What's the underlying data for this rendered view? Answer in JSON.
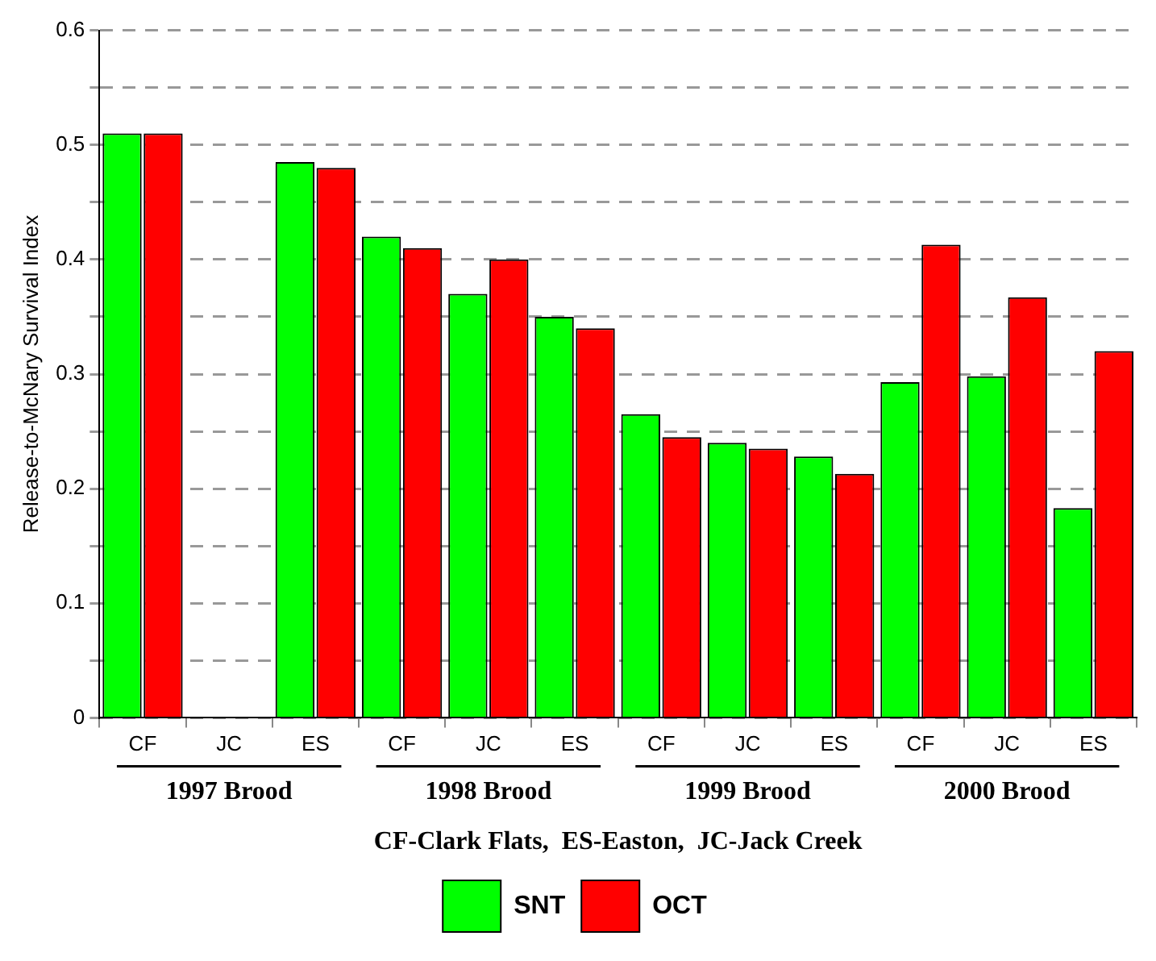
{
  "chart_data": {
    "type": "bar",
    "ylabel": "Release-to-McNary Survival Index",
    "xlabel": "CF-Clark Flats,  ES-Easton,  JC-Jack Creek",
    "categories": [
      "CF",
      "JC",
      "ES",
      "CF",
      "JC",
      "ES",
      "CF",
      "JC",
      "ES",
      "CF",
      "JC",
      "ES"
    ],
    "annotations": [
      "1997 Brood",
      "1998 Brood",
      "1999 Brood",
      "2000 Brood"
    ],
    "series": [
      {
        "name": "SNT",
        "color": "#00ff00",
        "values": [
          0.51,
          null,
          0.485,
          0.42,
          0.37,
          0.35,
          0.265,
          0.24,
          0.228,
          0.293,
          0.298,
          0.183
        ]
      },
      {
        "name": "OCT",
        "color": "#ff0000",
        "values": [
          0.51,
          null,
          0.48,
          0.41,
          0.4,
          0.34,
          0.245,
          0.235,
          0.213,
          0.413,
          0.367,
          0.32
        ]
      }
    ],
    "ylim": [
      0,
      0.6
    ],
    "yticks": [
      0,
      {
        "value": 0.05,
        "label": null
      },
      0.1,
      {
        "value": 0.15,
        "label": null
      },
      0.2,
      {
        "value": 0.25,
        "label": null
      },
      0.3,
      {
        "value": 0.35,
        "label": null
      },
      0.4,
      {
        "value": 0.45,
        "label": null
      },
      0.5,
      {
        "value": 0.55,
        "label": null
      },
      0.6
    ],
    "grid": "y",
    "legend": "bottom"
  }
}
